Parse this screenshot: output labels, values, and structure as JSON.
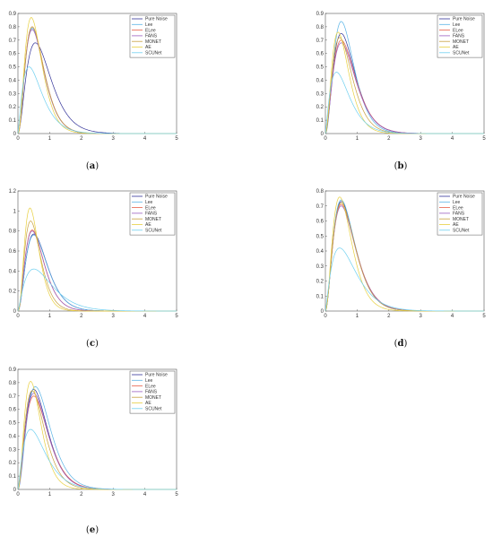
{
  "chart_data": [
    {
      "id": "a",
      "type": "line",
      "caption": "a",
      "xlim": [
        0,
        5
      ],
      "ylim": [
        0,
        0.9
      ],
      "xticks": [
        0,
        1,
        2,
        3,
        4,
        5
      ],
      "yticks": [
        0,
        0.1,
        0.2,
        0.3,
        0.4,
        0.5,
        0.6,
        0.7,
        0.8,
        0.9
      ],
      "ytick_labels": [
        "0",
        "0.1",
        "0.2",
        "0.3",
        "0.4",
        "0.5",
        "0.6",
        "0.7",
        "0.8",
        "0.9"
      ],
      "legend_position": "top-right",
      "series": [
        {
          "name": "Pure Noise",
          "color": "#333399",
          "peak_x": 0.55,
          "peak_y": 0.68,
          "shape": 2.0
        },
        {
          "name": "Lee",
          "color": "#5ab4e6",
          "peak_x": 0.45,
          "peak_y": 0.79,
          "shape": 2.3
        },
        {
          "name": "ELee",
          "color": "#e8614a",
          "peak_x": 0.45,
          "peak_y": 0.8,
          "shape": 2.3
        },
        {
          "name": "FANS",
          "color": "#9b5fc0",
          "peak_x": 0.45,
          "peak_y": 0.78,
          "shape": 2.3
        },
        {
          "name": "MONET",
          "color": "#c8a040",
          "peak_x": 0.45,
          "peak_y": 0.8,
          "shape": 2.3
        },
        {
          "name": "AE",
          "color": "#e8d040",
          "peak_x": 0.42,
          "peak_y": 0.87,
          "shape": 2.4
        },
        {
          "name": "SCUNet",
          "color": "#70d0f0",
          "peak_x": 0.35,
          "peak_y": 0.5,
          "shape": 1.3
        }
      ]
    },
    {
      "id": "b",
      "type": "line",
      "caption": "b",
      "xlim": [
        0,
        5
      ],
      "ylim": [
        0,
        0.9
      ],
      "xticks": [
        0,
        1,
        2,
        3,
        4,
        5
      ],
      "yticks": [
        0,
        0.1,
        0.2,
        0.3,
        0.4,
        0.5,
        0.6,
        0.7,
        0.8,
        0.9
      ],
      "ytick_labels": [
        "0",
        "0.1",
        "0.2",
        "0.3",
        "0.4",
        "0.5",
        "0.6",
        "0.7",
        "0.8",
        "0.9"
      ],
      "legend_position": "top-right",
      "series": [
        {
          "name": "Pure Noise",
          "color": "#333399",
          "peak_x": 0.5,
          "peak_y": 0.75,
          "shape": 2.1
        },
        {
          "name": "Lee",
          "color": "#5ab4e6",
          "peak_x": 0.5,
          "peak_y": 0.84,
          "shape": 2.4
        },
        {
          "name": "ELee",
          "color": "#e8614a",
          "peak_x": 0.5,
          "peak_y": 0.7,
          "shape": 2.0
        },
        {
          "name": "FANS",
          "color": "#9b5fc0",
          "peak_x": 0.5,
          "peak_y": 0.68,
          "shape": 2.0
        },
        {
          "name": "MONET",
          "color": "#c8a040",
          "peak_x": 0.45,
          "peak_y": 0.72,
          "shape": 2.1
        },
        {
          "name": "AE",
          "color": "#e8d040",
          "peak_x": 0.4,
          "peak_y": 0.76,
          "shape": 2.2
        },
        {
          "name": "SCUNet",
          "color": "#70d0f0",
          "peak_x": 0.35,
          "peak_y": 0.46,
          "shape": 1.3
        }
      ]
    },
    {
      "id": "c",
      "type": "line",
      "caption": "c",
      "xlim": [
        0,
        5
      ],
      "ylim": [
        0,
        1.2
      ],
      "xticks": [
        0,
        1,
        2,
        3,
        4,
        5
      ],
      "yticks": [
        0,
        0.2,
        0.4,
        0.6,
        0.8,
        1,
        1.2
      ],
      "ytick_labels": [
        "0",
        "0.2",
        "0.4",
        "0.6",
        "0.8",
        "1",
        "1.2"
      ],
      "legend_position": "top-right",
      "series": [
        {
          "name": "Pure Noise",
          "color": "#333399",
          "peak_x": 0.5,
          "peak_y": 0.77,
          "shape": 2.2
        },
        {
          "name": "Lee",
          "color": "#5ab4e6",
          "peak_x": 0.5,
          "peak_y": 0.76,
          "shape": 2.2
        },
        {
          "name": "ELee",
          "color": "#e8614a",
          "peak_x": 0.45,
          "peak_y": 0.81,
          "shape": 2.3
        },
        {
          "name": "FANS",
          "color": "#9b5fc0",
          "peak_x": 0.45,
          "peak_y": 0.8,
          "shape": 2.3
        },
        {
          "name": "MONET",
          "color": "#c8a040",
          "peak_x": 0.4,
          "peak_y": 0.9,
          "shape": 2.5
        },
        {
          "name": "AE",
          "color": "#e8d040",
          "peak_x": 0.38,
          "peak_y": 1.03,
          "shape": 2.8
        },
        {
          "name": "SCUNet",
          "color": "#70d0f0",
          "peak_x": 0.5,
          "peak_y": 0.42,
          "shape": 1.3
        }
      ]
    },
    {
      "id": "d",
      "type": "line",
      "caption": "d",
      "xlim": [
        0,
        5
      ],
      "ylim": [
        0,
        0.8
      ],
      "xticks": [
        0,
        1,
        2,
        3,
        4,
        5
      ],
      "yticks": [
        0,
        0.1,
        0.2,
        0.3,
        0.4,
        0.5,
        0.6,
        0.7,
        0.8
      ],
      "ytick_labels": [
        "0",
        "0.1",
        "0.2",
        "0.3",
        "0.4",
        "0.5",
        "0.6",
        "0.7",
        "0.8"
      ],
      "legend_position": "top-right",
      "series": [
        {
          "name": "Pure Noise",
          "color": "#333399",
          "peak_x": 0.5,
          "peak_y": 0.73,
          "shape": 2.1
        },
        {
          "name": "Lee",
          "color": "#5ab4e6",
          "peak_x": 0.5,
          "peak_y": 0.74,
          "shape": 2.1
        },
        {
          "name": "ELee",
          "color": "#e8614a",
          "peak_x": 0.5,
          "peak_y": 0.71,
          "shape": 2.0
        },
        {
          "name": "FANS",
          "color": "#9b5fc0",
          "peak_x": 0.5,
          "peak_y": 0.7,
          "shape": 2.0
        },
        {
          "name": "MONET",
          "color": "#c8a040",
          "peak_x": 0.5,
          "peak_y": 0.72,
          "shape": 2.1
        },
        {
          "name": "AE",
          "color": "#e8d040",
          "peak_x": 0.45,
          "peak_y": 0.76,
          "shape": 2.2
        },
        {
          "name": "SCUNet",
          "color": "#70d0f0",
          "peak_x": 0.45,
          "peak_y": 0.42,
          "shape": 1.3
        }
      ]
    },
    {
      "id": "e",
      "type": "line",
      "caption": "e",
      "xlim": [
        0,
        5
      ],
      "ylim": [
        0,
        0.9
      ],
      "xticks": [
        0,
        1,
        2,
        3,
        4,
        5
      ],
      "yticks": [
        0,
        0.1,
        0.2,
        0.3,
        0.4,
        0.5,
        0.6,
        0.7,
        0.8,
        0.9
      ],
      "ytick_labels": [
        "0",
        "0.1",
        "0.2",
        "0.3",
        "0.4",
        "0.5",
        "0.6",
        "0.7",
        "0.8",
        "0.9"
      ],
      "legend_position": "top-right",
      "series": [
        {
          "name": "Pure Noise",
          "color": "#333399",
          "peak_x": 0.5,
          "peak_y": 0.75,
          "shape": 2.1
        },
        {
          "name": "Lee",
          "color": "#5ab4e6",
          "peak_x": 0.55,
          "peak_y": 0.77,
          "shape": 2.2
        },
        {
          "name": "ELee",
          "color": "#e8614a",
          "peak_x": 0.5,
          "peak_y": 0.7,
          "shape": 2.0
        },
        {
          "name": "FANS",
          "color": "#9b5fc0",
          "peak_x": 0.5,
          "peak_y": 0.72,
          "shape": 2.1
        },
        {
          "name": "MONET",
          "color": "#c8a040",
          "peak_x": 0.45,
          "peak_y": 0.74,
          "shape": 2.1
        },
        {
          "name": "AE",
          "color": "#e8d040",
          "peak_x": 0.4,
          "peak_y": 0.81,
          "shape": 2.3
        },
        {
          "name": "SCUNet",
          "color": "#70d0f0",
          "peak_x": 0.4,
          "peak_y": 0.45,
          "shape": 1.3
        }
      ]
    }
  ]
}
